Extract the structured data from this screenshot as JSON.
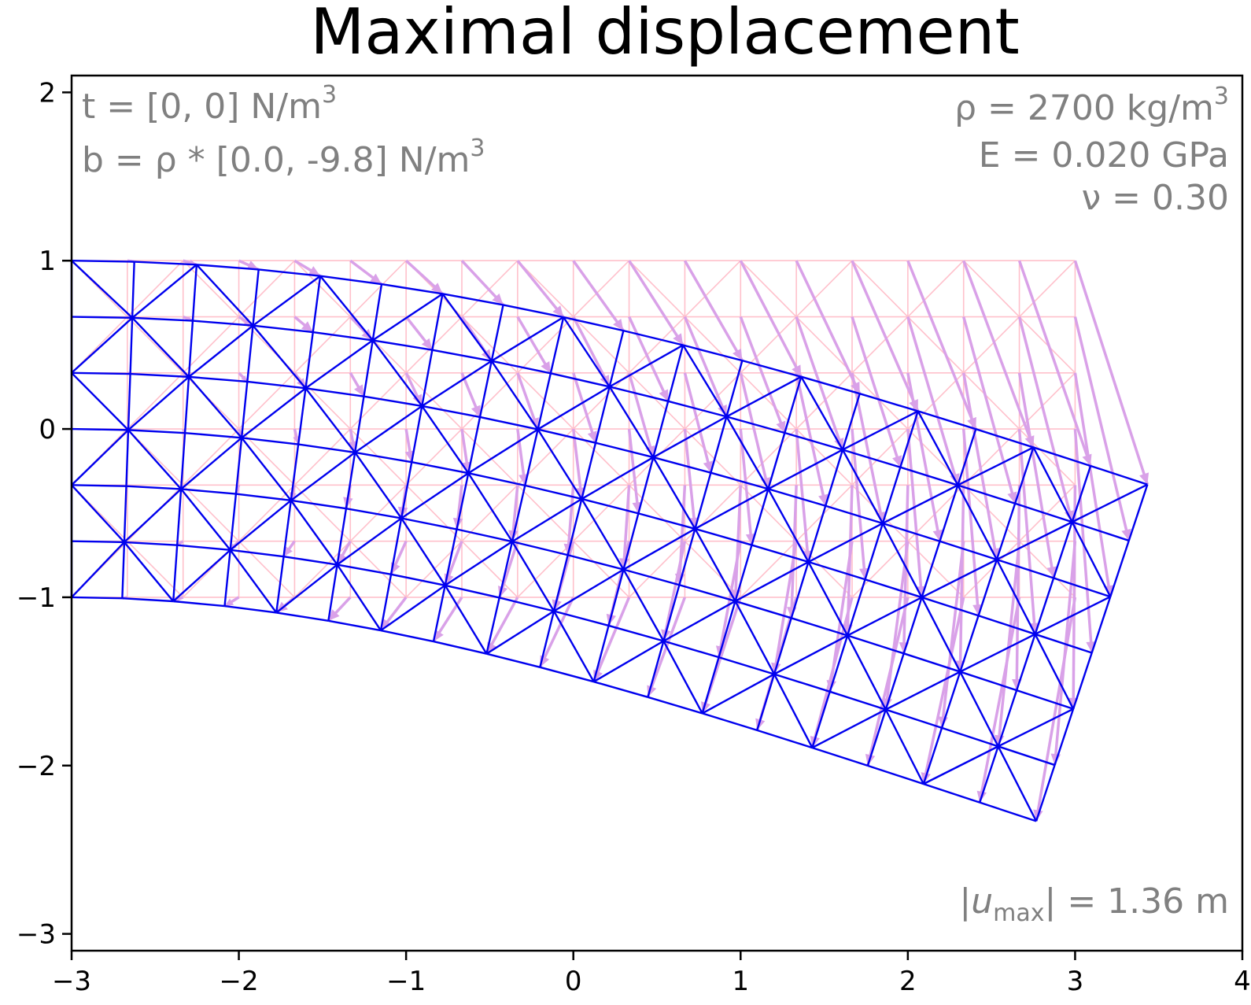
{
  "chart_data": {
    "type": "mesh",
    "title": "Maximal displacement",
    "xlabel": "",
    "ylabel": "",
    "xlim": [
      -3,
      4
    ],
    "ylim": [
      -3.1,
      2.1
    ],
    "x_ticks": [
      -3,
      -2,
      -1,
      0,
      1,
      2,
      3,
      4
    ],
    "y_ticks": [
      -3,
      -2,
      -1,
      0,
      1,
      2
    ],
    "x_tick_labels": [
      "−3",
      "−2",
      "−1",
      "0",
      "1",
      "2",
      "3",
      "4"
    ],
    "y_tick_labels": [
      "−3",
      "−2",
      "−1",
      "0",
      "1",
      "2"
    ],
    "grid": false,
    "mesh": {
      "nx": 18,
      "ny": 6,
      "x_range": [
        -3,
        3
      ],
      "y_range": [
        -1,
        1
      ],
      "tip_displacement": [
        0.1,
        -1.33
      ],
      "original_color": "#ffc0cb",
      "deformed_color": "#0000ee",
      "arrow_color": "#d9a1e8"
    },
    "annotations": {
      "traction_prefix": "t = [0, 0]  N/m",
      "traction_exp": "3",
      "body_prefix": "b = ρ * [0.0, -9.8]  N/m",
      "body_exp": "3",
      "density_prefix": "ρ = 2700 kg/m",
      "density_exp": "3",
      "modulus": "E = 0.020 GPa",
      "poisson": "ν = 0.30",
      "umax_open": "|",
      "umax_var": "u",
      "umax_sub": "max",
      "umax_rest": "| = 1.36 m"
    }
  }
}
